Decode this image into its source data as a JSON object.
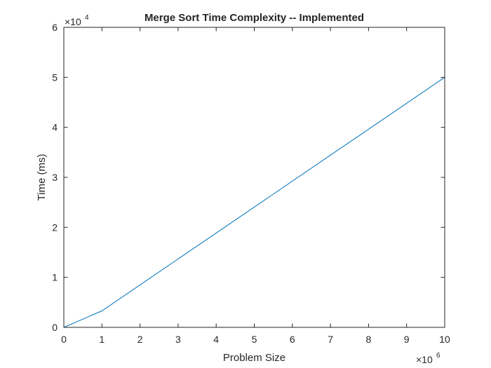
{
  "chart_data": {
    "type": "line",
    "title": "Merge Sort Time Complexity -- Implemented",
    "xlabel": "Problem Size",
    "ylabel": "Time (ms)",
    "xlim": [
      0,
      10
    ],
    "ylim": [
      0,
      6
    ],
    "x_ticks": [
      "0",
      "1",
      "2",
      "3",
      "4",
      "5",
      "6",
      "7",
      "8",
      "9",
      "10"
    ],
    "y_ticks": [
      "0",
      "1",
      "2",
      "3",
      "4",
      "5",
      "6"
    ],
    "x_exponent": {
      "base": "×10",
      "power": "6"
    },
    "y_exponent": {
      "base": "×10",
      "power": "4"
    },
    "grid": false,
    "line_color": "#0072BD",
    "series": [
      {
        "x": [
          0,
          1,
          10
        ],
        "y": [
          0,
          0.33,
          5.0
        ]
      }
    ]
  }
}
